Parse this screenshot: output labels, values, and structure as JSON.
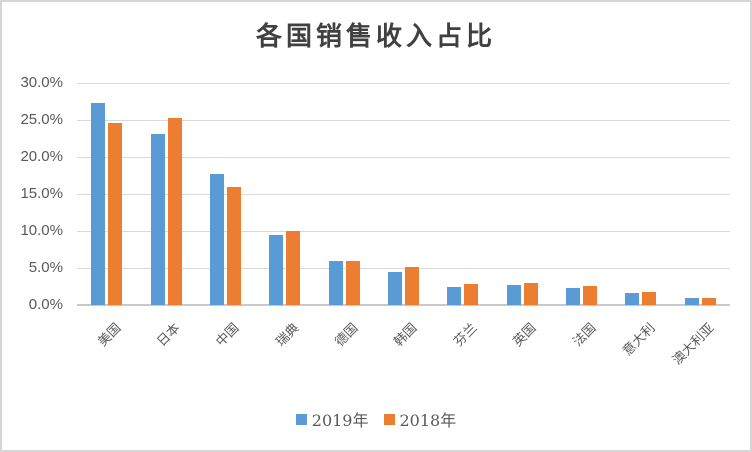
{
  "chart_data": {
    "type": "bar",
    "title": "各国销售收入占比",
    "categories": [
      "美国",
      "日本",
      "中国",
      "瑞典",
      "德国",
      "韩国",
      "芬兰",
      "英国",
      "法国",
      "意大利",
      "澳大利亚"
    ],
    "series": [
      {
        "name": "2019年",
        "color": "#5B9BD5",
        "values": [
          27.3,
          23.1,
          17.7,
          9.5,
          5.9,
          4.4,
          2.4,
          2.7,
          2.3,
          1.6,
          0.9
        ]
      },
      {
        "name": "2018年",
        "color": "#ED7D31",
        "values": [
          24.6,
          25.3,
          15.9,
          10.0,
          5.9,
          5.1,
          2.9,
          3.0,
          2.6,
          1.8,
          0.9
        ]
      }
    ],
    "y_axis": {
      "ticks": [
        "0.0%",
        "5.0%",
        "10.0%",
        "15.0%",
        "20.0%",
        "25.0%",
        "30.0%"
      ],
      "min": 0,
      "max": 30,
      "step": 5,
      "unit": "%"
    },
    "grid": true,
    "legend_position": "bottom",
    "colors": {
      "gridline": "#D9D9D9",
      "axis_line": "#C9C9C9",
      "title_text": "#404040",
      "axis_text": "#595959"
    }
  }
}
